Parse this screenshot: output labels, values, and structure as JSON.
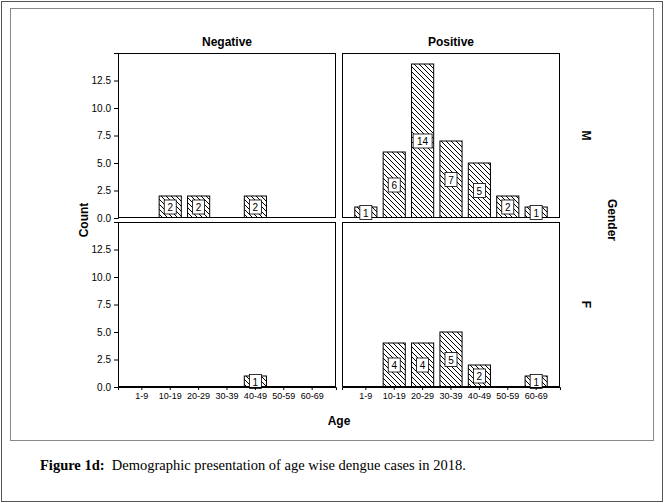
{
  "chart_data": {
    "type": "bar",
    "title": "Figure 1d:  Demographic presentation of age wise dengue cases in 2018.",
    "x_label": "Age",
    "y_label": "Count",
    "row_title": "Gender",
    "columns": [
      "Negative",
      "Positive"
    ],
    "rows": [
      "M",
      "F"
    ],
    "categories": [
      "1-9",
      "10-19",
      "20-29",
      "30-39",
      "40-49",
      "50-59",
      "60-69"
    ],
    "panels": [
      [
        [
          null,
          2,
          2,
          null,
          2,
          null,
          null
        ],
        [
          1,
          6,
          14,
          7,
          5,
          2,
          1
        ]
      ],
      [
        [
          null,
          null,
          null,
          null,
          1,
          null,
          null
        ],
        [
          null,
          4,
          4,
          5,
          2,
          null,
          1
        ]
      ]
    ],
    "ylim": [
      0,
      15
    ],
    "yticks": [
      {
        "value": 0,
        "label": "0.0"
      },
      2.5,
      {
        "value": 5,
        "label": "5.0"
      },
      7.5,
      {
        "value": 10,
        "label": "10.0"
      },
      12.5
    ],
    "color": "#ffffff",
    "data_labels": true
  }
}
